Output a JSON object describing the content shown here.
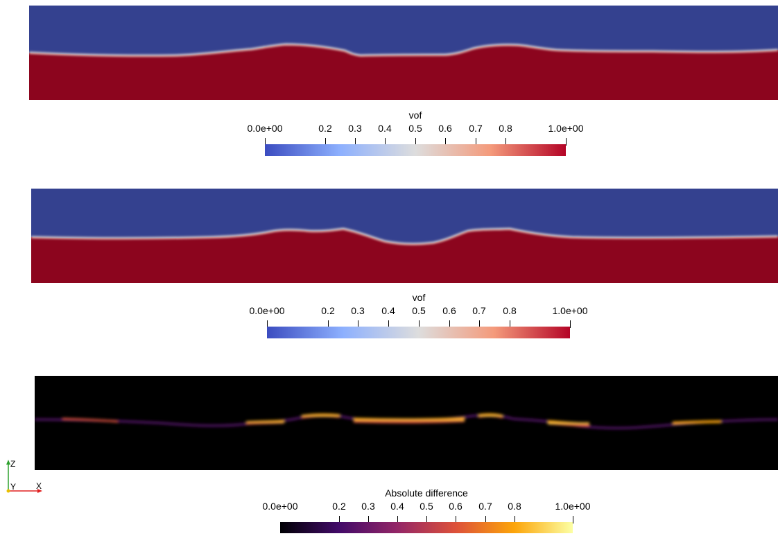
{
  "colors": {
    "water": "#8c051e",
    "air": "#34418f",
    "diff_background": "#000000"
  },
  "colorbars": [
    {
      "title": "vof",
      "tick_labels": [
        "0.0e+00",
        "0.2",
        "0.3",
        "0.4",
        "0.5",
        "0.6",
        "0.7",
        "0.8",
        "1.0e+00"
      ],
      "tick_values": [
        0.0,
        0.2,
        0.3,
        0.4,
        0.5,
        0.6,
        0.7,
        0.8,
        1.0
      ],
      "colormap": "coolwarm",
      "colors": [
        "#3b4cc0",
        "#8db0fe",
        "#dddddd",
        "#f49a7b",
        "#b40426"
      ]
    },
    {
      "title": "vof",
      "tick_labels": [
        "0.0e+00",
        "0.2",
        "0.3",
        "0.4",
        "0.5",
        "0.6",
        "0.7",
        "0.8",
        "1.0e+00"
      ],
      "tick_values": [
        0.0,
        0.2,
        0.3,
        0.4,
        0.5,
        0.6,
        0.7,
        0.8,
        1.0
      ],
      "colormap": "coolwarm",
      "colors": [
        "#3b4cc0",
        "#8db0fe",
        "#dddddd",
        "#f49a7b",
        "#b40426"
      ]
    },
    {
      "title": "Absolute difference",
      "tick_labels": [
        "0.0e+00",
        "0.2",
        "0.3",
        "0.4",
        "0.5",
        "0.6",
        "0.7",
        "0.8",
        "1.0e+00"
      ],
      "tick_values": [
        0.0,
        0.2,
        0.3,
        0.4,
        0.5,
        0.6,
        0.7,
        0.8,
        1.0
      ],
      "colormap": "inferno",
      "colors": [
        "#000004",
        "#420a68",
        "#932667",
        "#dd513a",
        "#fca50a",
        "#fcffa4"
      ]
    }
  ],
  "axes": {
    "z": "Z",
    "y": "Y",
    "x": "X",
    "z_color": "#2ca02c",
    "y_color": "#e8c000",
    "x_color": "#e02020"
  }
}
